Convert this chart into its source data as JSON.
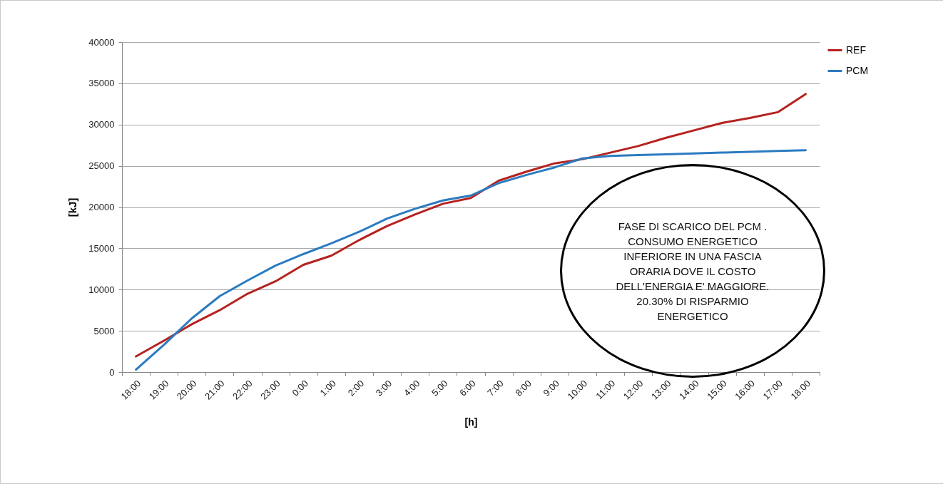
{
  "chart_data": {
    "type": "line",
    "xlabel": "[h]",
    "ylabel": "[kJ]",
    "categories": [
      "18:00",
      "19:00",
      "20:00",
      "21:00",
      "22:00",
      "23:00",
      "0:00",
      "1:00",
      "2:00",
      "3:00",
      "4:00",
      "5:00",
      "6:00",
      "7:00",
      "8:00",
      "9:00",
      "10:00",
      "11:00",
      "12:00",
      "13:00",
      "14:00",
      "15:00",
      "16:00",
      "17:00",
      "18:00"
    ],
    "series": [
      {
        "name": "REF",
        "color": "#b5221f",
        "values": [
          1900,
          3800,
          5800,
          7500,
          9500,
          11000,
          13000,
          14100,
          16000,
          17700,
          19100,
          20400,
          21100,
          23200,
          24300,
          25300,
          25800,
          26600,
          27400,
          28400,
          29300,
          30200,
          30800,
          31500,
          33700
        ]
      },
      {
        "name": "PCM",
        "color": "#2b7bc0",
        "values": [
          300,
          3300,
          6500,
          9200,
          11100,
          12900,
          14300,
          15600,
          17000,
          18600,
          19800,
          20800,
          21400,
          22900,
          23900,
          24800,
          25900,
          26200,
          26300,
          26400,
          26500,
          26600,
          26700,
          26800,
          26900
        ]
      }
    ],
    "ylim": [
      0,
      40000
    ],
    "yticks": [
      0,
      5000,
      10000,
      15000,
      20000,
      25000,
      30000,
      35000,
      40000
    ],
    "grid": "y",
    "legend": "right",
    "line_style": "solid",
    "marker": "none",
    "annotations": [
      "FASE DI SCARICO DEL PCM . CONSUMO ENERGETICO INFERIORE IN UNA FASCIA ORARIA DOVE IL COSTO DELL'ENERGIA E' MAGGIORE. 20.30% DI RISPARMIO ENERGETICO"
    ]
  }
}
